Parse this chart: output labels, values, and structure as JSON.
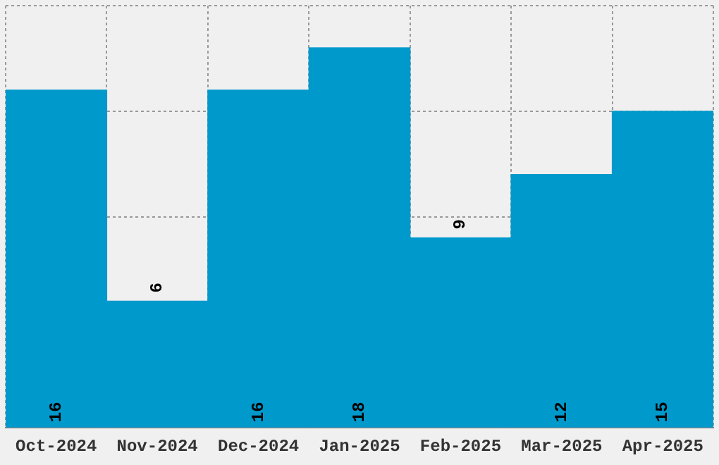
{
  "chart_data": {
    "type": "bar",
    "categories": [
      "Oct-2024",
      "Nov-2024",
      "Dec-2024",
      "Jan-2025",
      "Feb-2025",
      "Mar-2025",
      "Apr-2025"
    ],
    "values": [
      16,
      6,
      16,
      18,
      9,
      12,
      15
    ],
    "color": "#0099cc",
    "tick_labels": "x",
    "grid": true,
    "data_labels": true,
    "legend": false
  }
}
